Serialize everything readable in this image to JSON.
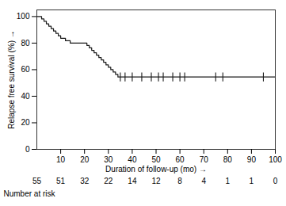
{
  "chart_data": {
    "type": "step",
    "xlabel": "Duration of follow-up (mo)",
    "ylabel": "Relapse free survival (%)",
    "xlim": [
      0,
      100
    ],
    "ylim": [
      0,
      105
    ],
    "xticks": [
      10,
      20,
      30,
      40,
      50,
      60,
      70,
      80,
      90,
      100
    ],
    "yticks": [
      0,
      20,
      40,
      60,
      80,
      100
    ],
    "grid": false,
    "series": [
      {
        "type": "step",
        "color": "#1a1a1a",
        "x": [
          0,
          2,
          3,
          4,
          5,
          6,
          7,
          8,
          9,
          10,
          11,
          12,
          14,
          15,
          20,
          21,
          22,
          23,
          24,
          25,
          26,
          27,
          28,
          29,
          30,
          31,
          32,
          33,
          34,
          95,
          100
        ],
        "values": [
          100,
          98.2,
          96.4,
          94.5,
          92.7,
          90.9,
          89.1,
          87.3,
          85.5,
          83.6,
          83.6,
          81.8,
          80.0,
          80.0,
          80.0,
          78.2,
          76.4,
          74.5,
          72.7,
          70.9,
          69.1,
          67.3,
          65.5,
          63.6,
          61.8,
          60.0,
          58.2,
          56.4,
          54.5,
          54.5,
          54.5
        ]
      },
      {
        "type": "scatter",
        "marker": "tick",
        "color": "#1a1a1a",
        "x": [
          35,
          37,
          40,
          44,
          48,
          51,
          53,
          57,
          60,
          62,
          75,
          78,
          95
        ],
        "values": [
          54.5,
          54.5,
          54.5,
          54.5,
          54.5,
          54.5,
          54.5,
          54.5,
          54.5,
          54.5,
          54.5,
          54.5,
          54.5
        ]
      }
    ],
    "number_at_risk": {
      "label": "Number at risk",
      "x": [
        0,
        10,
        20,
        30,
        40,
        50,
        60,
        70,
        80,
        90,
        100
      ],
      "values": [
        55,
        51,
        32,
        22,
        14,
        12,
        8,
        4,
        1,
        1,
        0
      ]
    }
  }
}
